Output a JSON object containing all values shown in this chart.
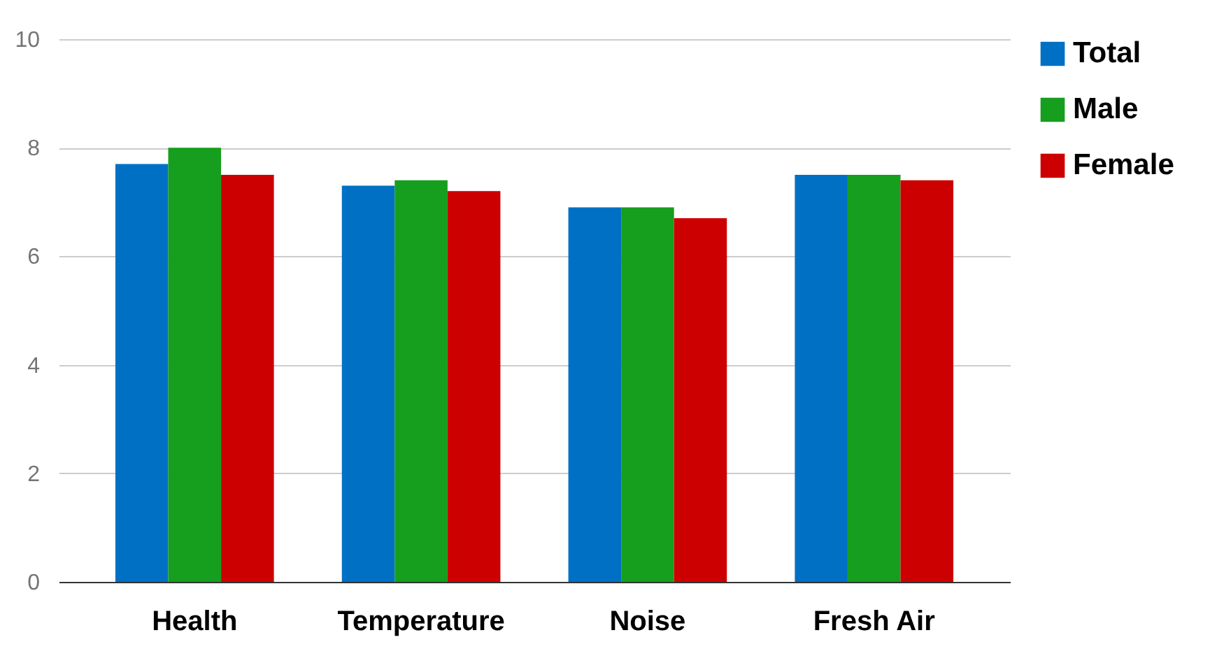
{
  "chart_data": {
    "type": "bar",
    "categories": [
      "Health",
      "Temperature",
      "Noise",
      "Fresh Air"
    ],
    "series": [
      {
        "name": "Total",
        "color": "#0070c4",
        "values": [
          7.7,
          7.3,
          6.9,
          7.5
        ]
      },
      {
        "name": "Male",
        "color": "#169e1e",
        "values": [
          8.0,
          7.4,
          6.9,
          7.5
        ]
      },
      {
        "name": "Female",
        "color": "#cc0000",
        "values": [
          7.5,
          7.2,
          6.7,
          7.4
        ]
      }
    ],
    "ylim": [
      0,
      10
    ],
    "yticks": [
      0,
      2,
      4,
      6,
      8,
      10
    ],
    "grid": "y",
    "legend": "top right"
  }
}
